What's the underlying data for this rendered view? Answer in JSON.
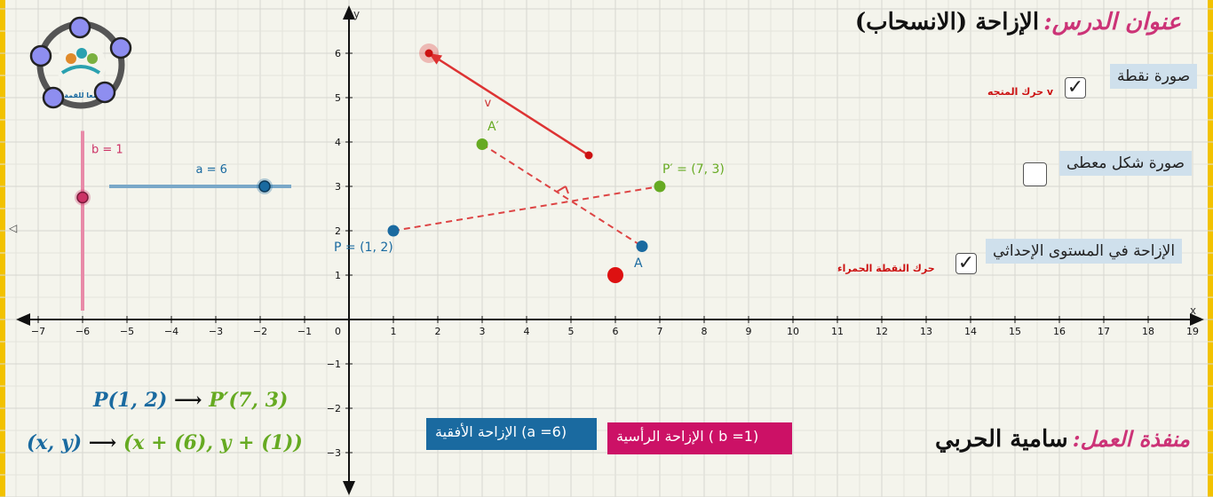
{
  "lesson": {
    "title_label": "عنوان الدرس:",
    "title_value": "الإزاحة (الانسحاب)"
  },
  "author": {
    "label": "منفذة العمل:",
    "name": "سامية الحربي"
  },
  "logo": {
    "text": "معا للقمة"
  },
  "controls": [
    {
      "label": "صورة نقطة",
      "checked": true,
      "note": "حرك المتجه v"
    },
    {
      "label": "صورة شكل معطى",
      "checked": false,
      "note": ""
    },
    {
      "label": "الإزاحة في المستوى الإحداثي",
      "checked": true,
      "note": "حرك النقطة الحمراء"
    }
  ],
  "badges": {
    "horizontal": {
      "text": "الإزاحة الأفقية (a =6)",
      "color": "#1a6aa0"
    },
    "vertical": {
      "text": "الإزاحة الرأسية ( b =1)",
      "color": "#cc1166"
    }
  },
  "formulas": {
    "point_left": "P(1, 2)",
    "point_arrow": "⟶",
    "point_right": "P′(7, 3)",
    "rule_left": "(x, y)",
    "rule_arrow": "⟶",
    "rule_right": "(x + (6), y + (1))"
  },
  "axes": {
    "x_label": "x",
    "y_label": "y",
    "x_ticks": [
      -7,
      -6,
      -5,
      -4,
      -3,
      -2,
      -1,
      1,
      2,
      3,
      4,
      5,
      6,
      7,
      8,
      9,
      10,
      11,
      12,
      13,
      14,
      15,
      16,
      17,
      18,
      19
    ],
    "y_ticks": [
      -3,
      -2,
      -1,
      1,
      2,
      3,
      4,
      5,
      6
    ],
    "origin_label": "0"
  },
  "sliders": {
    "a": {
      "label": "a = 6",
      "value": 6,
      "color": "#1a6aa0"
    },
    "b": {
      "label": "b = 1",
      "value": 1,
      "color": "#cc3366"
    }
  },
  "points": {
    "P": {
      "label": "P = (1, 2)",
      "x": 1,
      "y": 2,
      "color": "#1a6aa0"
    },
    "P_prime": {
      "label": "P′ = (7, 3)",
      "x": 7,
      "y": 3,
      "color": "#66aa22"
    },
    "A": {
      "label": "A",
      "x": 6.6,
      "y": 1.65,
      "color": "#1a6aa0"
    },
    "A_prime": {
      "label": "A′",
      "x": 3,
      "y": 3.95,
      "color": "#66aa22"
    },
    "red_handle": {
      "x": 6,
      "y": 1,
      "color": "#dd1111"
    }
  },
  "vector": {
    "label": "v",
    "start": {
      "x": 5.4,
      "y": 3.7
    },
    "end": {
      "x": 1.8,
      "y": 6
    },
    "color": "#dd3333"
  },
  "colors": {
    "accent_pink": "#cc3377",
    "grid": "#d6d6d0",
    "axis": "#111111"
  }
}
